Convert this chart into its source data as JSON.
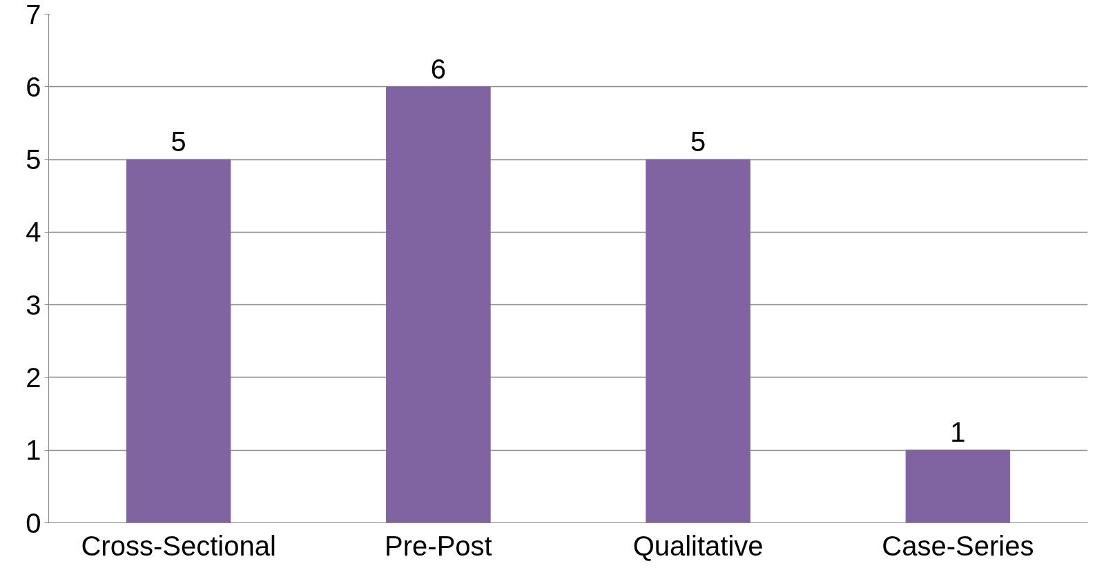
{
  "chart_data": {
    "type": "bar",
    "categories": [
      "Cross-Sectional",
      "Pre-Post",
      "Qualitative",
      "Case-Series"
    ],
    "values": [
      5,
      6,
      5,
      1
    ],
    "color": "#8064a2",
    "ylim": [
      0,
      7
    ],
    "yticks": [
      0,
      1,
      2,
      3,
      4,
      5,
      6,
      7
    ],
    "grid": "y",
    "data_labels": true
  }
}
